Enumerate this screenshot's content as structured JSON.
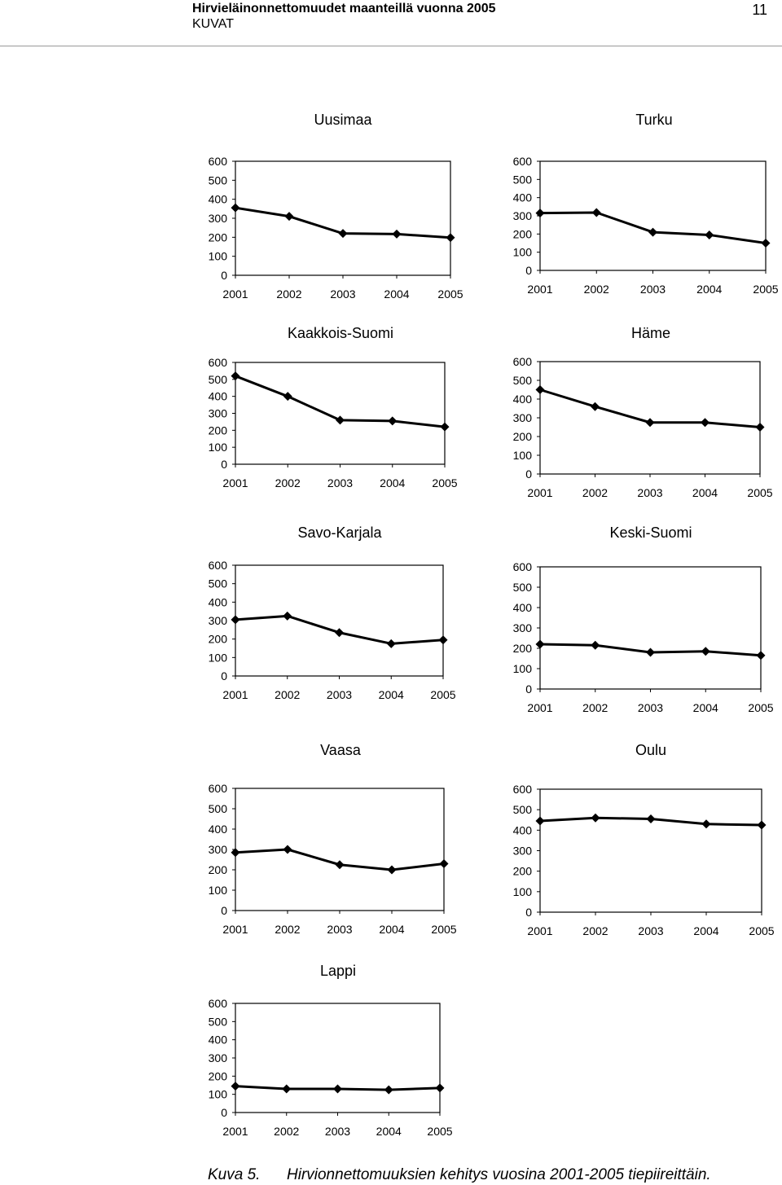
{
  "header": {
    "title": "Hirvieläinonnettomuudet maanteillä vuonna 2005",
    "subtitle": "KUVAT",
    "page_number": "11"
  },
  "caption": {
    "label": "Kuva 5.",
    "text": "Hirvionnettomuuksien kehitys vuosina 2001-2005 tiepiireittäin."
  },
  "chart_data": [
    {
      "type": "line",
      "title": "Uusimaa",
      "categories": [
        "2001",
        "2002",
        "2003",
        "2004",
        "2005"
      ],
      "ylim": [
        0,
        600
      ],
      "yticks": [
        "600",
        "500",
        "400",
        "300",
        "200",
        "100",
        "0"
      ],
      "series": [
        {
          "values": [
            355,
            310,
            220,
            217,
            198
          ]
        }
      ]
    },
    {
      "type": "line",
      "title": "Turku",
      "categories": [
        "2001",
        "2002",
        "2003",
        "2004",
        "2005"
      ],
      "ylim": [
        0,
        600
      ],
      "yticks": [
        "600",
        "500",
        "400",
        "300",
        "200",
        "100",
        "0"
      ],
      "series": [
        {
          "values": [
            315,
            318,
            210,
            195,
            150
          ]
        }
      ]
    },
    {
      "type": "line",
      "title": "Kaakkois-Suomi",
      "categories": [
        "2001",
        "2002",
        "2003",
        "2004",
        "2005"
      ],
      "ylim": [
        0,
        600
      ],
      "yticks": [
        "600",
        "500",
        "400",
        "300",
        "200",
        "100",
        "0"
      ],
      "series": [
        {
          "values": [
            520,
            400,
            260,
            255,
            220
          ]
        }
      ]
    },
    {
      "type": "line",
      "title": "Häme",
      "categories": [
        "2001",
        "2002",
        "2003",
        "2004",
        "2005"
      ],
      "ylim": [
        0,
        600
      ],
      "yticks": [
        "600",
        "500",
        "400",
        "300",
        "200",
        "100",
        "0"
      ],
      "series": [
        {
          "values": [
            450,
            360,
            275,
            275,
            250
          ]
        }
      ]
    },
    {
      "type": "line",
      "title": "Savo-Karjala",
      "categories": [
        "2001",
        "2002",
        "2003",
        "2004",
        "2005"
      ],
      "ylim": [
        0,
        600
      ],
      "yticks": [
        "600",
        "500",
        "400",
        "300",
        "200",
        "100",
        "0"
      ],
      "series": [
        {
          "values": [
            305,
            325,
            235,
            175,
            195
          ]
        }
      ]
    },
    {
      "type": "line",
      "title": "Keski-Suomi",
      "categories": [
        "2001",
        "2002",
        "2003",
        "2004",
        "2005"
      ],
      "ylim": [
        0,
        600
      ],
      "yticks": [
        "600",
        "500",
        "400",
        "300",
        "200",
        "100",
        "0"
      ],
      "series": [
        {
          "values": [
            220,
            215,
            180,
            185,
            165
          ]
        }
      ]
    },
    {
      "type": "line",
      "title": "Vaasa",
      "categories": [
        "2001",
        "2002",
        "2003",
        "2004",
        "2005"
      ],
      "ylim": [
        0,
        600
      ],
      "yticks": [
        "600",
        "500",
        "400",
        "300",
        "200",
        "100",
        "0"
      ],
      "series": [
        {
          "values": [
            285,
            300,
            225,
            200,
            230
          ]
        }
      ]
    },
    {
      "type": "line",
      "title": "Oulu",
      "categories": [
        "2001",
        "2002",
        "2003",
        "2004",
        "2005"
      ],
      "ylim": [
        0,
        600
      ],
      "yticks": [
        "600",
        "500",
        "400",
        "300",
        "200",
        "100",
        "0"
      ],
      "series": [
        {
          "values": [
            445,
            460,
            455,
            430,
            425
          ]
        }
      ]
    },
    {
      "type": "line",
      "title": "Lappi",
      "categories": [
        "2001",
        "2002",
        "2003",
        "2004",
        "2005"
      ],
      "ylim": [
        0,
        600
      ],
      "yticks": [
        "600",
        "500",
        "400",
        "300",
        "200",
        "100",
        "0"
      ],
      "series": [
        {
          "values": [
            145,
            130,
            130,
            125,
            135
          ]
        }
      ]
    }
  ]
}
